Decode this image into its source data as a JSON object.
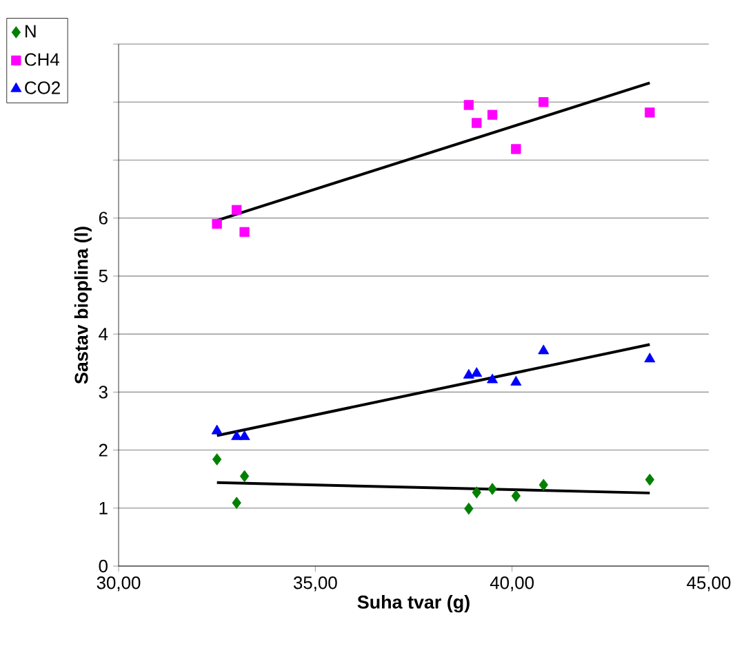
{
  "chart_data": {
    "type": "scatter",
    "xlabel": "Suha tvar (g)",
    "ylabel": "Sastav bioplina (l)",
    "xlim": [
      30,
      45
    ],
    "xticks": [
      {
        "value": 30,
        "label": "30,00"
      },
      {
        "value": 35,
        "label": "35,00"
      },
      {
        "value": 40,
        "label": "40,00"
      },
      {
        "value": 45,
        "label": "45,00"
      }
    ],
    "ylim": [
      0,
      9
    ],
    "yticks": [
      0,
      1,
      2,
      3,
      4,
      5,
      6,
      {
        "value": 7,
        "label": null
      },
      {
        "value": 8,
        "label": null
      },
      {
        "value": 9,
        "label": null
      }
    ],
    "grid": "y",
    "legend": "top left",
    "x": [
      32.5,
      33.0,
      33.2,
      38.9,
      39.1,
      39.5,
      40.1,
      40.8,
      43.5
    ],
    "series": [
      {
        "name": "N",
        "color": "#008000",
        "marker": "diamond",
        "values": [
          1.84,
          1.09,
          1.55,
          0.99,
          1.27,
          1.33,
          1.21,
          1.4,
          1.49
        ]
      },
      {
        "name": "CH4",
        "color": "#ff00ff",
        "marker": "square",
        "values": [
          5.9,
          6.14,
          5.76,
          7.95,
          7.64,
          7.78,
          7.19,
          8.0,
          7.82
        ]
      },
      {
        "name": "CO2",
        "color": "#0000ff",
        "marker": "triangle",
        "values": [
          2.33,
          2.23,
          2.23,
          3.29,
          3.32,
          3.21,
          3.17,
          3.71,
          3.57
        ]
      },
      {
        "type": "line",
        "color": "#000000",
        "values": [
          1.44,
          null,
          null,
          null,
          null,
          null,
          null,
          null,
          1.26
        ]
      },
      {
        "type": "line",
        "color": "#000000",
        "values": [
          5.96,
          null,
          null,
          null,
          null,
          null,
          null,
          null,
          8.33
        ]
      },
      {
        "type": "line",
        "color": "#000000",
        "values": [
          2.25,
          null,
          null,
          null,
          null,
          null,
          null,
          null,
          3.82
        ]
      }
    ]
  }
}
